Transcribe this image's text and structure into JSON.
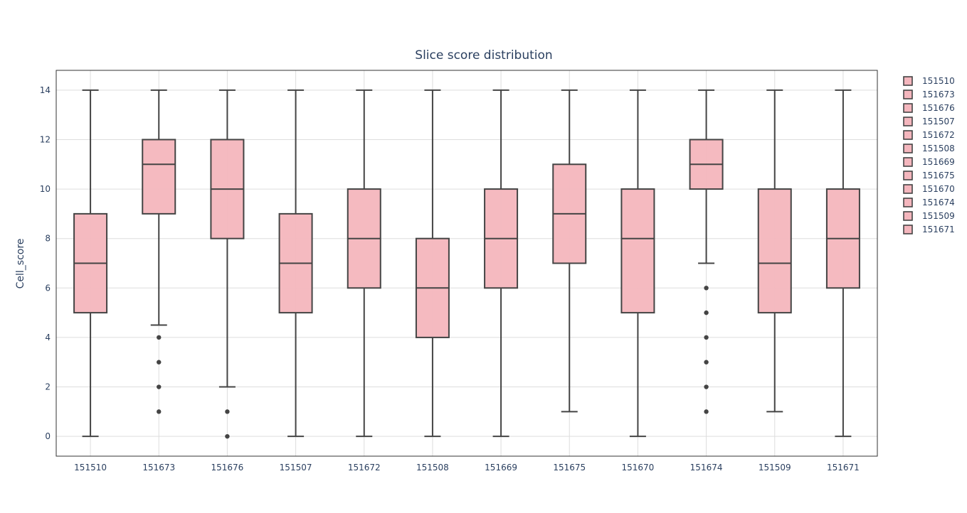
{
  "chart_data": {
    "type": "box",
    "title": "Slice score distribution",
    "xlabel": "",
    "ylabel": "Cell_score",
    "ylim": [
      -0.8,
      14.8
    ],
    "yticks": [
      0,
      2,
      4,
      6,
      8,
      10,
      12,
      14
    ],
    "grid": true,
    "legend_position": "right",
    "colors": {
      "box_fill": "#f4b6bd",
      "box_line": "#444444",
      "grid": "#dddddd",
      "axis_text": "#2a3f5f"
    },
    "categories": [
      "151510",
      "151673",
      "151676",
      "151507",
      "151672",
      "151508",
      "151669",
      "151675",
      "151670",
      "151674",
      "151509",
      "151671"
    ],
    "series": [
      {
        "name": "151510",
        "min": 0,
        "q1": 5,
        "median": 7,
        "q3": 9,
        "max": 14,
        "outliers": []
      },
      {
        "name": "151673",
        "min": 4.5,
        "q1": 9,
        "median": 11,
        "q3": 12,
        "max": 14,
        "outliers": [
          1,
          2,
          3,
          4
        ]
      },
      {
        "name": "151676",
        "min": 2,
        "q1": 8,
        "median": 10,
        "q3": 12,
        "max": 14,
        "outliers": [
          0,
          1
        ]
      },
      {
        "name": "151507",
        "min": 0,
        "q1": 5,
        "median": 7,
        "q3": 9,
        "max": 14,
        "outliers": []
      },
      {
        "name": "151672",
        "min": 0,
        "q1": 6,
        "median": 8,
        "q3": 10,
        "max": 14,
        "outliers": []
      },
      {
        "name": "151508",
        "min": 0,
        "q1": 4,
        "median": 6,
        "q3": 8,
        "max": 14,
        "outliers": []
      },
      {
        "name": "151669",
        "min": 0,
        "q1": 6,
        "median": 8,
        "q3": 10,
        "max": 14,
        "outliers": []
      },
      {
        "name": "151675",
        "min": 1,
        "q1": 7,
        "median": 9,
        "q3": 11,
        "max": 14,
        "outliers": []
      },
      {
        "name": "151670",
        "min": 0,
        "q1": 5,
        "median": 8,
        "q3": 10,
        "max": 14,
        "outliers": []
      },
      {
        "name": "151674",
        "min": 7,
        "q1": 10,
        "median": 11,
        "q3": 12,
        "max": 14,
        "outliers": [
          1,
          2,
          3,
          4,
          5,
          6
        ]
      },
      {
        "name": "151509",
        "min": 1,
        "q1": 5,
        "median": 7,
        "q3": 10,
        "max": 14,
        "outliers": []
      },
      {
        "name": "151671",
        "min": 0,
        "q1": 6,
        "median": 8,
        "q3": 10,
        "max": 14,
        "outliers": []
      }
    ]
  }
}
